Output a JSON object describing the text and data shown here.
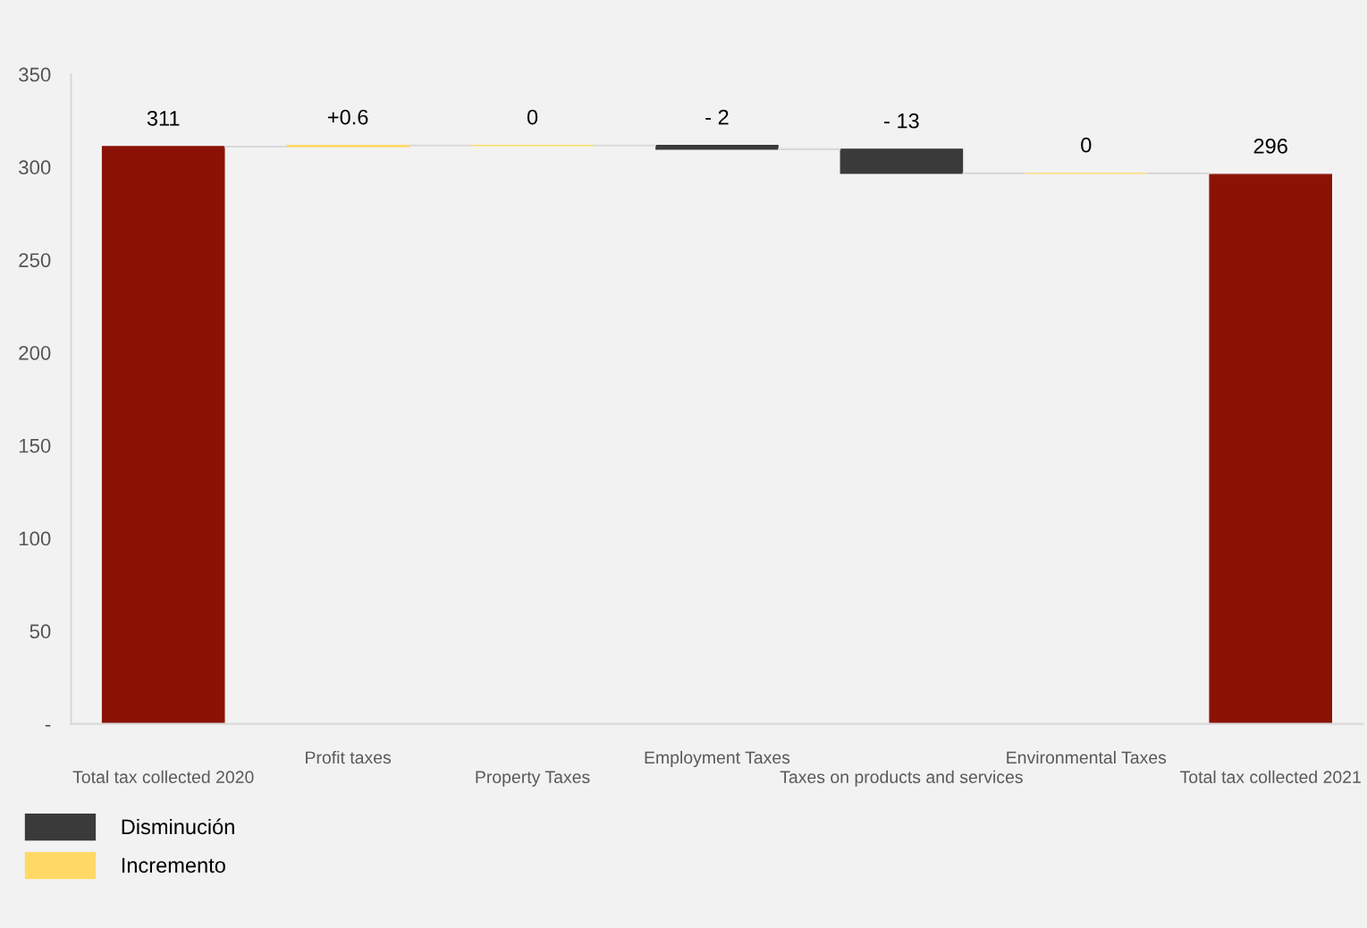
{
  "chart_data": {
    "type": "bar",
    "categories": [
      "Total tax collected 2020",
      "Profit taxes",
      "Property Taxes",
      "Employment Taxes",
      "Taxes on products and services",
      "Environmental Taxes",
      "Total tax collected 2021"
    ],
    "series": [
      {
        "color": "#8b1306",
        "values": [
          311,
          null,
          null,
          null,
          null,
          null,
          296
        ],
        "base": [
          0,
          null,
          null,
          null,
          null,
          null,
          0
        ]
      },
      {
        "name": "Disminución",
        "color": "#3a3a3a",
        "values": [
          null,
          null,
          null,
          -2,
          -13,
          null,
          null
        ],
        "base": [
          null,
          null,
          null,
          311.6,
          309.6,
          null,
          null
        ]
      },
      {
        "name": "Incremento",
        "color": "#ffd966",
        "values": [
          null,
          0.6,
          0,
          null,
          null,
          0,
          null
        ],
        "base": [
          null,
          311,
          311.6,
          null,
          null,
          296.6,
          null
        ]
      }
    ],
    "value_labels": [
      "311",
      "+0.6",
      "0",
      "- 2",
      "- 13",
      "0",
      "296"
    ],
    "ylim": [
      0,
      350
    ],
    "yticks": [
      {
        "value": 0,
        "label": "-"
      },
      50,
      100,
      150,
      200,
      250,
      300,
      350
    ],
    "grid": false,
    "legend": "bottom left"
  }
}
